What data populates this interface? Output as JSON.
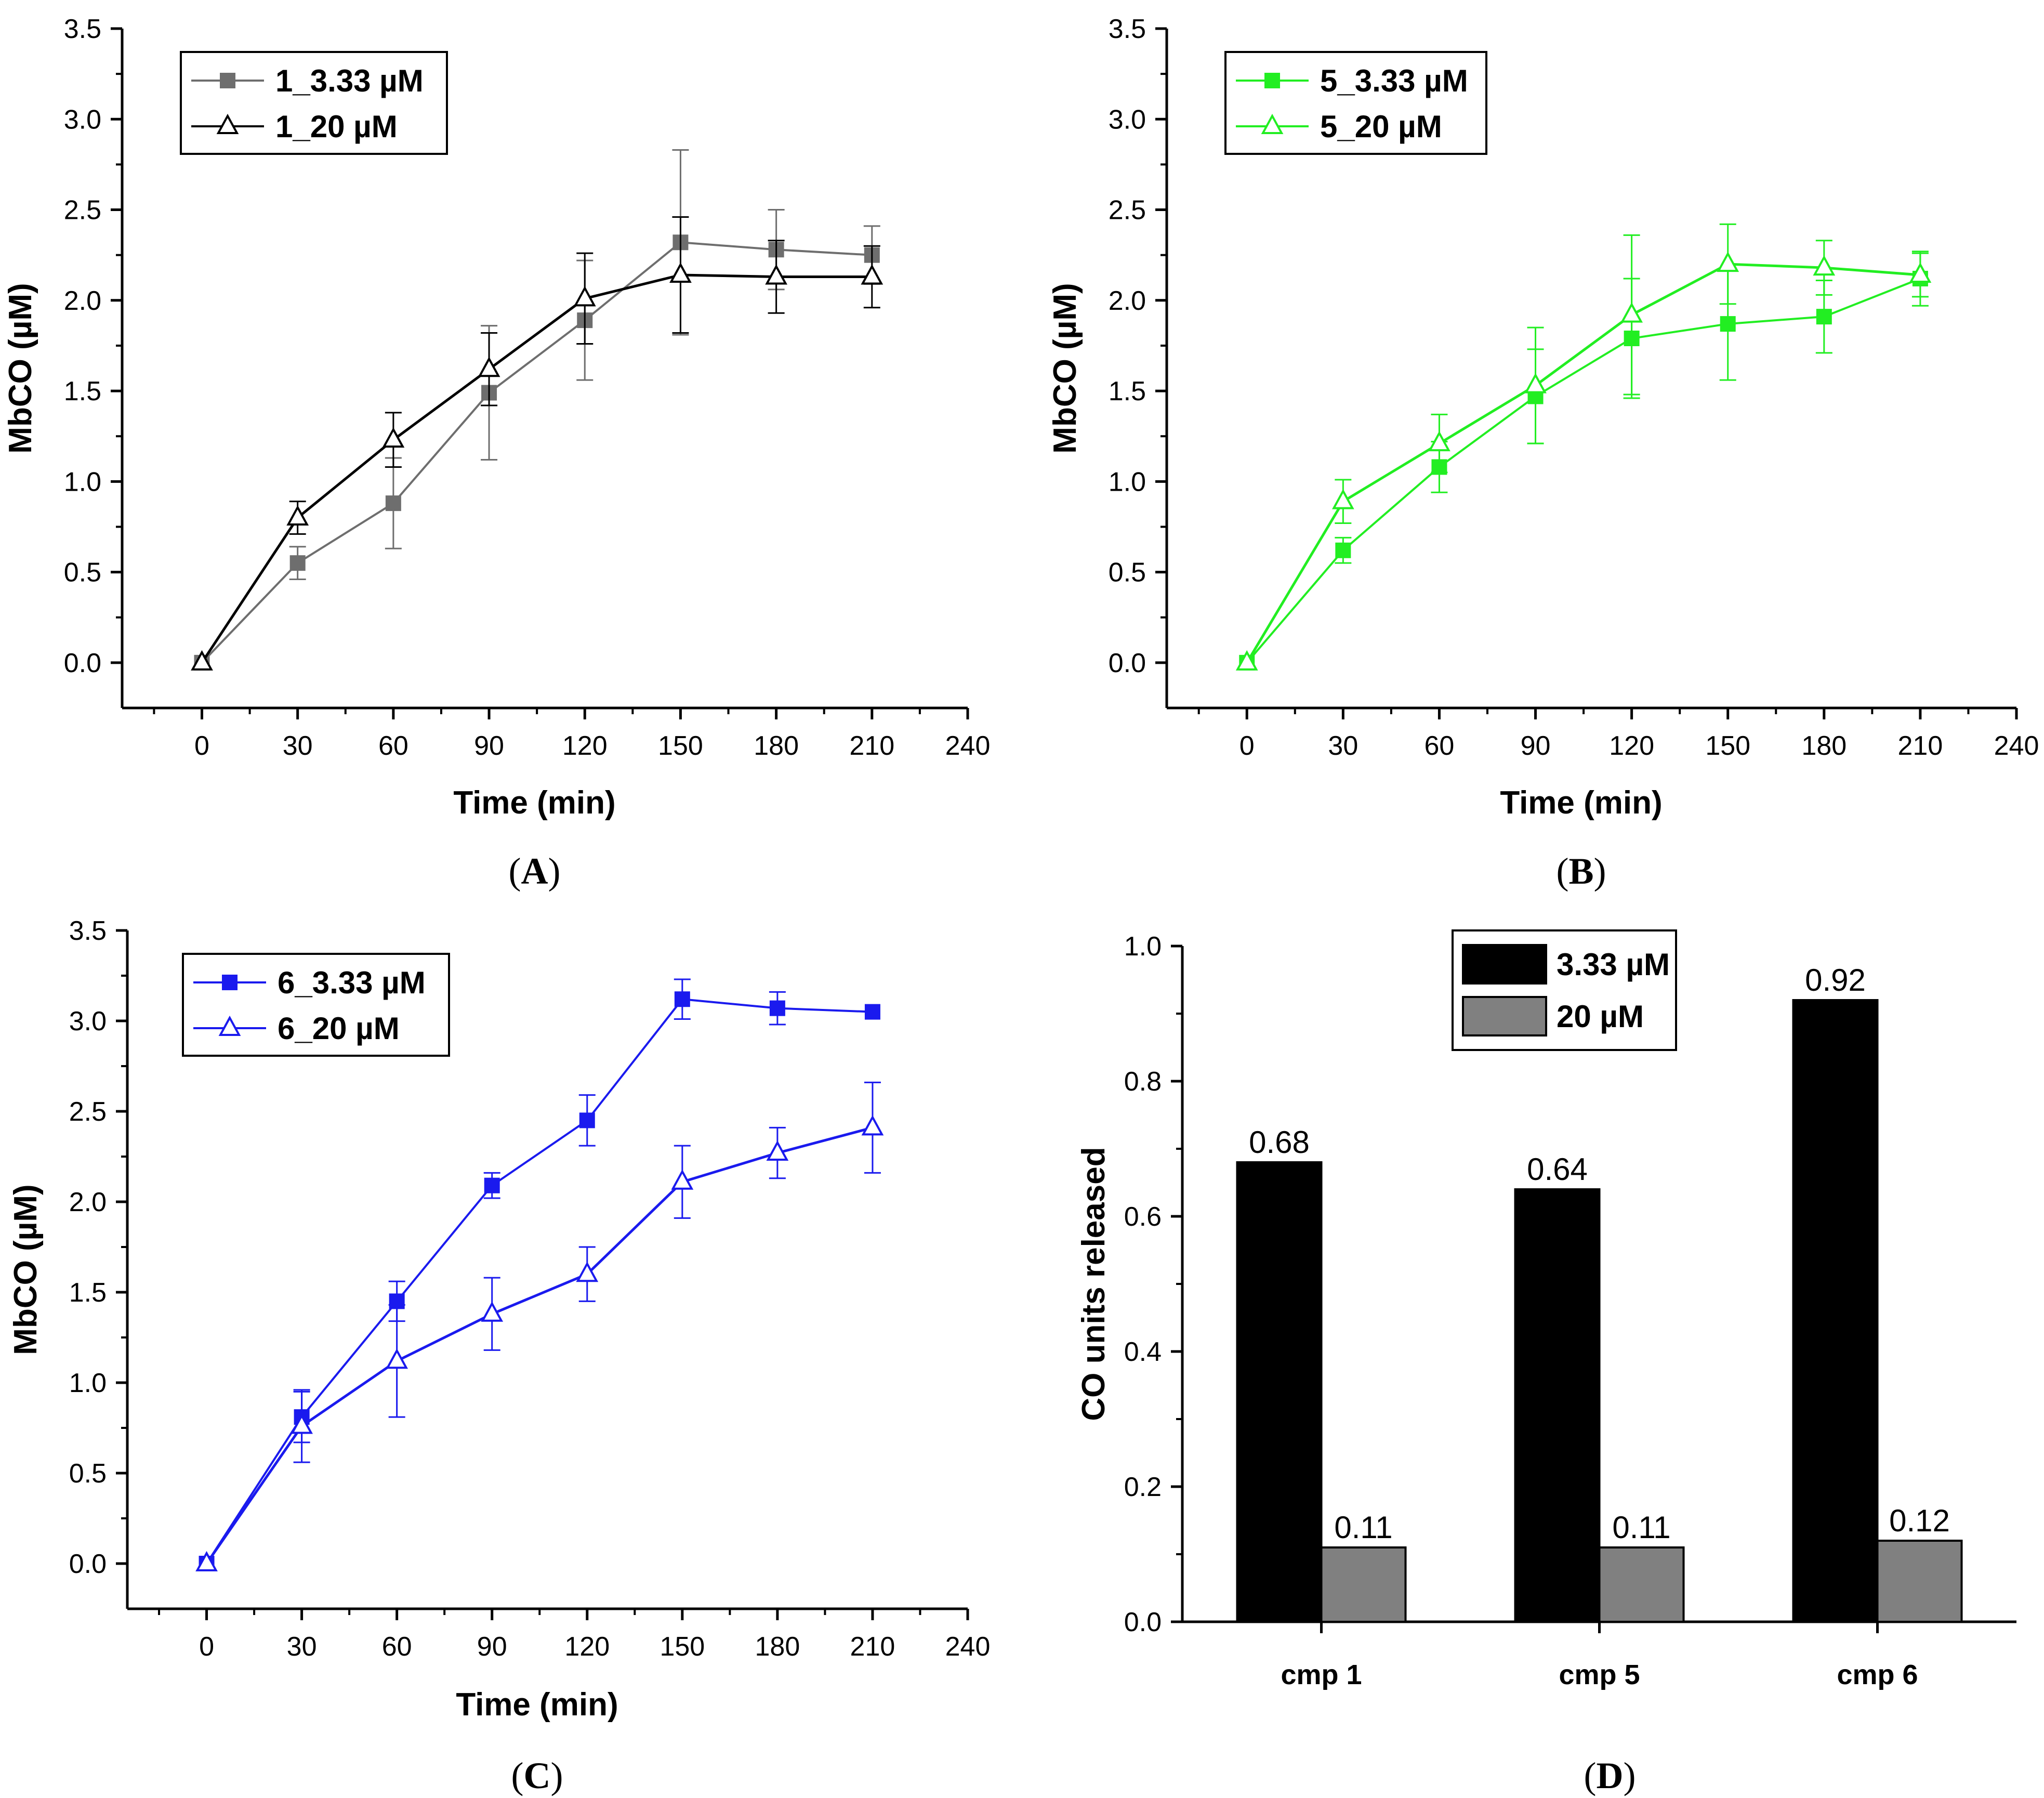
{
  "chart_data": [
    {
      "panel": "(A)",
      "panel_letter": "A",
      "type": "line",
      "xlabel": "Time (min)",
      "ylabel": "MbCO (µM)",
      "xlim": [
        -25,
        240
      ],
      "ylim": [
        -0.25,
        3.5
      ],
      "xticks": [
        0,
        30,
        60,
        90,
        120,
        150,
        180,
        210,
        240
      ],
      "yticks": [
        0.0,
        0.5,
        1.0,
        1.5,
        2.0,
        2.5,
        3.0,
        3.5
      ],
      "ytick_labels": [
        "0.0",
        "0.5",
        "1.0",
        "1.5",
        "2.0",
        "2.5",
        "3.0",
        "3.5"
      ],
      "legend_position": "top-left",
      "x": [
        0,
        30,
        60,
        90,
        120,
        150,
        180,
        210
      ],
      "series": [
        {
          "name": "1_3.33 µM",
          "marker": "square-filled",
          "color": "#6e6e6e",
          "values": [
            0.0,
            0.55,
            0.88,
            1.49,
            1.89,
            2.32,
            2.28,
            2.25
          ],
          "errors": [
            0.0,
            0.09,
            0.25,
            0.37,
            0.33,
            0.51,
            0.22,
            0.16
          ]
        },
        {
          "name": "1_20 µM",
          "marker": "triangle-open",
          "color": "#000000",
          "values": [
            0.0,
            0.8,
            1.23,
            1.62,
            2.01,
            2.14,
            2.13,
            2.13
          ],
          "errors": [
            0.0,
            0.09,
            0.15,
            0.2,
            0.25,
            0.32,
            0.2,
            0.17
          ]
        }
      ]
    },
    {
      "panel": "(B)",
      "panel_letter": "B",
      "type": "line",
      "xlabel": "Time (min)",
      "ylabel": "MbCO (µM)",
      "xlim": [
        -25,
        240
      ],
      "ylim": [
        -0.25,
        3.5
      ],
      "xticks": [
        0,
        30,
        60,
        90,
        120,
        150,
        180,
        210,
        240
      ],
      "yticks": [
        0.0,
        0.5,
        1.0,
        1.5,
        2.0,
        2.5,
        3.0,
        3.5
      ],
      "ytick_labels": [
        "0.0",
        "0.5",
        "1.0",
        "1.5",
        "2.0",
        "2.5",
        "3.0",
        "3.5"
      ],
      "legend_position": "top-left",
      "x": [
        0,
        30,
        60,
        90,
        120,
        150,
        180,
        210
      ],
      "series": [
        {
          "name": "5_3.33 µM",
          "marker": "square-filled",
          "color": "#22ee22",
          "values": [
            0.0,
            0.62,
            1.08,
            1.47,
            1.79,
            1.87,
            1.91,
            2.12
          ],
          "errors": [
            0.0,
            0.07,
            0.14,
            0.26,
            0.33,
            0.31,
            0.2,
            0.15
          ]
        },
        {
          "name": "5_20 µM",
          "marker": "triangle-open",
          "color": "#22ee22",
          "values": [
            0.0,
            0.89,
            1.21,
            1.53,
            1.92,
            2.2,
            2.18,
            2.14
          ],
          "errors": [
            0.0,
            0.12,
            0.16,
            0.32,
            0.44,
            0.22,
            0.15,
            0.12
          ]
        }
      ]
    },
    {
      "panel": "(C)",
      "panel_letter": "C",
      "type": "line",
      "xlabel": "Time (min)",
      "ylabel": "MbCO (µM)",
      "xlim": [
        -25,
        240
      ],
      "ylim": [
        -0.25,
        3.5
      ],
      "xticks": [
        0,
        30,
        60,
        90,
        120,
        150,
        180,
        210,
        240
      ],
      "yticks": [
        0.0,
        0.5,
        1.0,
        1.5,
        2.0,
        2.5,
        3.0,
        3.5
      ],
      "ytick_labels": [
        "0.0",
        "0.5",
        "1.0",
        "1.5",
        "2.0",
        "2.5",
        "3.0",
        "3.5"
      ],
      "legend_position": "top-left",
      "x": [
        0,
        30,
        60,
        90,
        120,
        150,
        180,
        210
      ],
      "series": [
        {
          "name": "6_3.33 µM",
          "marker": "square-filled",
          "color": "#1a1aee",
          "values": [
            0.0,
            0.81,
            1.45,
            2.09,
            2.45,
            3.12,
            3.07,
            3.05
          ],
          "errors": [
            0.0,
            0.14,
            0.11,
            0.07,
            0.14,
            0.11,
            0.09,
            0.0
          ]
        },
        {
          "name": "6_20 µM",
          "marker": "triangle-open",
          "color": "#1a1aee",
          "values": [
            0.0,
            0.76,
            1.12,
            1.38,
            1.6,
            2.11,
            2.27,
            2.41
          ],
          "errors": [
            0.0,
            0.2,
            0.31,
            0.2,
            0.15,
            0.2,
            0.14,
            0.25
          ]
        }
      ]
    },
    {
      "panel": "(D)",
      "panel_letter": "D",
      "type": "bar",
      "xlabel": "",
      "ylabel": "CO units released",
      "ylim": [
        0.0,
        1.0
      ],
      "yticks": [
        0.0,
        0.2,
        0.4,
        0.6,
        0.8,
        1.0
      ],
      "ytick_labels": [
        "0.0",
        "0.2",
        "0.4",
        "0.6",
        "0.8",
        "1.0"
      ],
      "legend_position": "top-right",
      "categories": [
        "cmp 1",
        "cmp 5",
        "cmp 6"
      ],
      "series": [
        {
          "name": "3.33 µM",
          "color": "#000000",
          "values": [
            0.68,
            0.64,
            0.92
          ],
          "value_labels": [
            "0.68",
            "0.64",
            "0.92"
          ]
        },
        {
          "name": "20 µM",
          "color": "#808080",
          "values": [
            0.11,
            0.11,
            0.12
          ],
          "value_labels": [
            "0.11",
            "0.11",
            "0.12"
          ]
        }
      ]
    }
  ]
}
